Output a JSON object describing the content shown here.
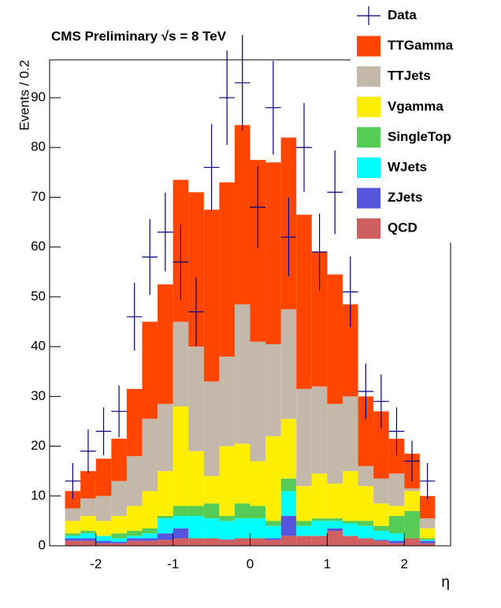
{
  "chart_data": {
    "type": "histogram",
    "stacked": true,
    "title": "CMS Preliminary   √s = 8 TeV",
    "x_label": "η",
    "y_label": "Events / 0.2",
    "bins": [
      -2.4,
      -2.2,
      -2.0,
      -1.8,
      -1.6,
      -1.4,
      -1.2,
      -1.0,
      -0.8,
      -0.6,
      -0.4,
      -0.2,
      0,
      0.2,
      0.4,
      0.6,
      0.8,
      1.0,
      1.2,
      1.4,
      1.6,
      1.8,
      2.0,
      2.2,
      2.4
    ],
    "data": {
      "name": "Data",
      "color": "#000080",
      "values": [
        13,
        19,
        23,
        27,
        46,
        58,
        63,
        57,
        47,
        76,
        90,
        93,
        68,
        88,
        62,
        80,
        59,
        71,
        51,
        31,
        29,
        23,
        17,
        13
      ],
      "errors": [
        3.6,
        4.4,
        4.8,
        5.2,
        6.8,
        7.6,
        7.9,
        7.5,
        6.9,
        8.7,
        9.5,
        9.6,
        8.2,
        9.4,
        7.9,
        8.9,
        7.7,
        8.4,
        7.1,
        5.6,
        5.4,
        4.8,
        4.1,
        3.6
      ]
    },
    "series": [
      {
        "name": "TTGamma",
        "color": "#ff4500",
        "values": [
          3.5,
          5.5,
          7.5,
          8.5,
          13.5,
          19.5,
          24,
          28.5,
          31,
          34.5,
          35,
          36,
          36.5,
          36.5,
          34.5,
          35,
          27,
          26,
          18.5,
          14,
          13.5,
          7,
          7,
          4.5
        ]
      },
      {
        "name": "TTJets",
        "color": "#c4b8aa",
        "values": [
          2.5,
          3.5,
          5,
          7,
          10,
          14.5,
          13.5,
          17,
          21,
          19,
          18,
          28,
          24,
          18.5,
          22,
          19.5,
          17.5,
          16,
          15,
          4,
          5,
          6.5,
          0.5,
          2
        ]
      },
      {
        "name": "Vgamma",
        "color": "#ffee00",
        "values": [
          2.5,
          3,
          3,
          3.5,
          5,
          7.5,
          9,
          20,
          11,
          5.5,
          14,
          12,
          9,
          17,
          12,
          7,
          9,
          7,
          10,
          7,
          4.5,
          2,
          4,
          2
        ]
      },
      {
        "name": "SingleTop",
        "color": "#55cc55",
        "values": [
          0.5,
          0.5,
          0,
          1,
          1,
          1,
          0.5,
          2,
          2,
          3,
          1,
          3,
          2.5,
          1,
          2.5,
          1,
          0.5,
          0.5,
          0.5,
          1,
          1,
          3.5,
          5.5,
          0.3
        ]
      },
      {
        "name": "WJets",
        "color": "#00ffff",
        "values": [
          0.5,
          1,
          1,
          0.7,
          0.5,
          1,
          3,
          2.5,
          4.5,
          4,
          3.7,
          4,
          4,
          2.5,
          5,
          2,
          3,
          1.5,
          2.5,
          2.5,
          1.8,
          1.5,
          0,
          0.2
        ]
      },
      {
        "name": "ZJets",
        "color": "#5555dd",
        "values": [
          0.5,
          0.5,
          0.5,
          0.3,
          0.5,
          0.5,
          1.3,
          2,
          0,
          0,
          0.1,
          0,
          0,
          0.3,
          4,
          0,
          0,
          0.5,
          0,
          0,
          0.2,
          0.5,
          0,
          0.5
        ]
      },
      {
        "name": "QCD",
        "color": "#d06060",
        "values": [
          1,
          1,
          0.5,
          0.5,
          1,
          1,
          1.2,
          1.5,
          1.5,
          1.5,
          1.2,
          1.5,
          1.5,
          1.2,
          2,
          2,
          2,
          3,
          2,
          1.5,
          1,
          0.5,
          1.5,
          0.5
        ]
      }
    ],
    "xlim": [
      -2.6,
      2.6
    ],
    "ylim": [
      0,
      97.6
    ],
    "xticks": [
      -2,
      -1,
      0,
      1,
      2
    ],
    "yticks": [
      0,
      10,
      20,
      30,
      40,
      50,
      60,
      70,
      80,
      90
    ]
  }
}
